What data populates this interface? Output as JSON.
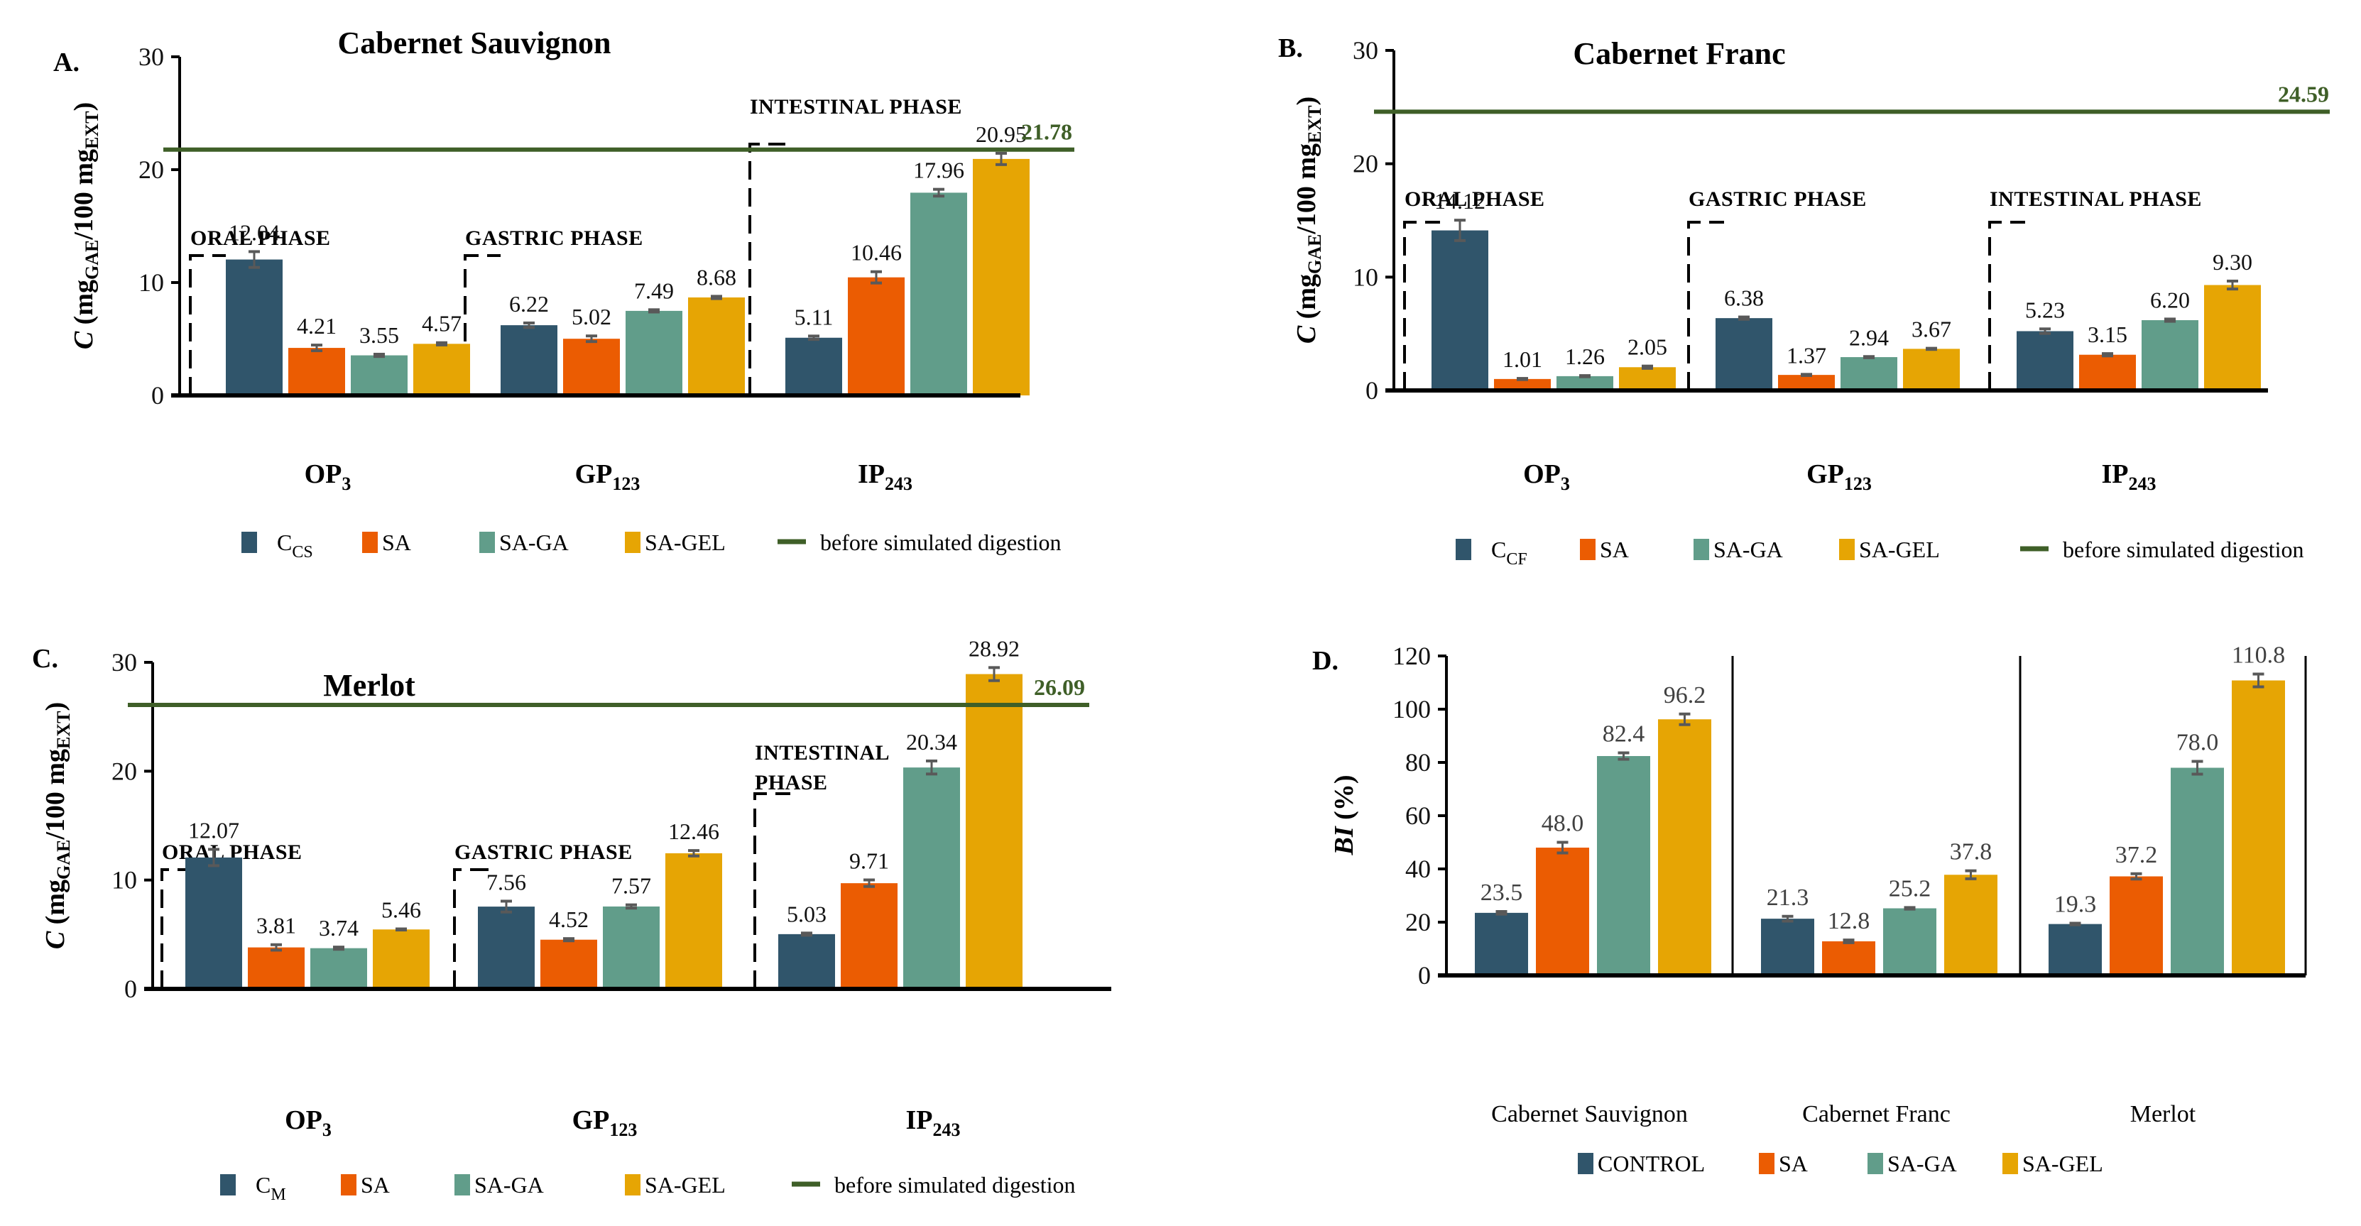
{
  "colors": {
    "control": "#30556B",
    "sa": "#EB5C02",
    "sa_ga": "#619D8A",
    "sa_gel": "#E6A504",
    "reference_line": "#3F5F28",
    "error_bar": "#595959",
    "axis": "#000000"
  },
  "chart_data": [
    {
      "id": "A",
      "type": "bar",
      "panel_letter": "A.",
      "title": "Cabernet Sauvignon",
      "ylabel": "C (mgGAE/100 mgEXT)",
      "ylabel_parts": {
        "pre": "C (mg",
        "sub1": "GAE",
        "mid": "/100 mg",
        "sub2": "EXT",
        "post": ")"
      },
      "ylim": [
        0,
        30
      ],
      "yticks": [
        0,
        10,
        20,
        30
      ],
      "categories": [
        {
          "main": "OP",
          "sub": "3",
          "phase": "ORAL PHASE"
        },
        {
          "main": "GP",
          "sub": "123",
          "phase": "GASTRIC PHASE"
        },
        {
          "main": "IP",
          "sub": "243",
          "phase": "INTESTINAL PHASE"
        }
      ],
      "series": [
        {
          "name": "CCS",
          "name_main": "C",
          "name_sub": "CS",
          "color_key": "control",
          "values": [
            12.04,
            6.22,
            5.11
          ],
          "errors": [
            0.7,
            0.2,
            0.15
          ]
        },
        {
          "name": "SA",
          "color_key": "sa",
          "values": [
            4.21,
            5.02,
            10.46
          ],
          "errors": [
            0.25,
            0.25,
            0.5
          ]
        },
        {
          "name": "SA-GA",
          "color_key": "sa_ga",
          "values": [
            3.55,
            7.49,
            17.96
          ],
          "errors": [
            0.1,
            0.1,
            0.3
          ]
        },
        {
          "name": "SA-GEL",
          "color_key": "sa_gel",
          "values": [
            4.57,
            8.68,
            20.95
          ],
          "errors": [
            0.1,
            0.1,
            0.5
          ]
        }
      ],
      "labels": [
        [
          "12.04",
          "6.22",
          "5.11"
        ],
        [
          "4.21",
          "5.02",
          "10.46"
        ],
        [
          "3.55",
          "7.49",
          "17.96"
        ],
        [
          "4.57",
          "8.68",
          "20.95"
        ]
      ],
      "reference": {
        "name": "before simulated digestion",
        "value": 21.78,
        "label": "21.78"
      },
      "legend_position": "bottom"
    },
    {
      "id": "B",
      "type": "bar",
      "panel_letter": "B.",
      "title": "Cabernet Franc",
      "ylabel": "C (mgGAE/100 mgEXT)",
      "ylabel_parts": {
        "pre": "C (mg",
        "sub1": "GAE",
        "mid": "/100 mg",
        "sub2": "EXT",
        "post": ")"
      },
      "ylim": [
        0,
        30
      ],
      "yticks": [
        0,
        10,
        20,
        30
      ],
      "categories": [
        {
          "main": "OP",
          "sub": "3",
          "phase": "ORAL PHASE"
        },
        {
          "main": "GP",
          "sub": "123",
          "phase": "GASTRIC PHASE"
        },
        {
          "main": "IP",
          "sub": "243",
          "phase": "INTESTINAL PHASE"
        }
      ],
      "series": [
        {
          "name": "CCF",
          "name_main": "C",
          "name_sub": "CF",
          "color_key": "control",
          "values": [
            14.12,
            6.38,
            5.23
          ],
          "errors": [
            0.9,
            0.1,
            0.2
          ]
        },
        {
          "name": "SA",
          "color_key": "sa",
          "values": [
            1.01,
            1.37,
            3.15
          ],
          "errors": [
            0.05,
            0.05,
            0.1
          ]
        },
        {
          "name": "SA-GA",
          "color_key": "sa_ga",
          "values": [
            1.26,
            2.94,
            6.2
          ],
          "errors": [
            0.05,
            0.05,
            0.1
          ]
        },
        {
          "name": "SA-GEL",
          "color_key": "sa_gel",
          "values": [
            2.05,
            3.67,
            9.3
          ],
          "errors": [
            0.1,
            0.05,
            0.35
          ]
        }
      ],
      "labels": [
        [
          "14.12",
          "6.38",
          "5.23"
        ],
        [
          "1.01",
          "1.37",
          "3.15"
        ],
        [
          "1.26",
          "2.94",
          "6.20"
        ],
        [
          "2.05",
          "3.67",
          "9.30"
        ]
      ],
      "reference": {
        "name": "before simulated digestion",
        "value": 24.59,
        "label": "24.59"
      },
      "legend_position": "bottom"
    },
    {
      "id": "C",
      "type": "bar",
      "panel_letter": "C.",
      "title": "Merlot",
      "ylabel": "C (mgGAE/100 mgEXT)",
      "ylabel_parts": {
        "pre": "C (mg",
        "sub1": "GAE",
        "mid": "/100 mg",
        "sub2": "EXT",
        "post": ")"
      },
      "ylim": [
        0,
        30
      ],
      "yticks": [
        0,
        10,
        20,
        30
      ],
      "categories": [
        {
          "main": "OP",
          "sub": "3",
          "phase": "ORAL PHASE"
        },
        {
          "main": "GP",
          "sub": "123",
          "phase": "GASTRIC PHASE"
        },
        {
          "main": "IP",
          "sub": "243",
          "phase": "INTESTINAL PHASE",
          "phase_lines": [
            "INTESTINAL",
            "PHASE"
          ]
        }
      ],
      "series": [
        {
          "name": "CM",
          "name_main": "C",
          "name_sub": "M",
          "color_key": "control",
          "values": [
            12.07,
            7.56,
            5.03
          ],
          "errors": [
            0.75,
            0.5,
            0.1
          ]
        },
        {
          "name": "SA",
          "color_key": "sa",
          "values": [
            3.81,
            4.52,
            9.71
          ],
          "errors": [
            0.25,
            0.1,
            0.3
          ]
        },
        {
          "name": "SA-GA",
          "color_key": "sa_ga",
          "values": [
            3.74,
            7.57,
            20.34
          ],
          "errors": [
            0.1,
            0.15,
            0.6
          ]
        },
        {
          "name": "SA-GEL",
          "color_key": "sa_gel",
          "values": [
            5.46,
            12.46,
            28.92
          ],
          "errors": [
            0.05,
            0.25,
            0.6
          ]
        }
      ],
      "labels": [
        [
          "12.07",
          "7.56",
          "5.03"
        ],
        [
          "3.81",
          "4.52",
          "9.71"
        ],
        [
          "3.74",
          "7.57",
          "20.34"
        ],
        [
          "5.46",
          "12.46",
          "28.92"
        ]
      ],
      "reference": {
        "name": "before simulated digestion",
        "value": 26.09,
        "label": "26.09"
      },
      "legend_position": "bottom"
    },
    {
      "id": "D",
      "type": "bar",
      "panel_letter": "D.",
      "title": "",
      "ylabel": "BI (%)",
      "ylabel_parts": {
        "italic": "BI",
        "post": " (%)"
      },
      "ylim": [
        0,
        120
      ],
      "yticks": [
        0,
        20,
        40,
        60,
        80,
        100,
        120
      ],
      "categories": [
        {
          "main": "Cabernet Sauvignon"
        },
        {
          "main": "Cabernet Franc"
        },
        {
          "main": "Merlot"
        }
      ],
      "series": [
        {
          "name": "CONTROL",
          "color_key": "control",
          "values": [
            23.5,
            21.3,
            19.3
          ],
          "errors": [
            0.5,
            0.9,
            0.3
          ]
        },
        {
          "name": "SA",
          "color_key": "sa",
          "values": [
            48.0,
            12.8,
            37.2
          ],
          "errors": [
            2.0,
            0.5,
            1.0
          ]
        },
        {
          "name": "SA-GA",
          "color_key": "sa_ga",
          "values": [
            82.4,
            25.2,
            78.0
          ],
          "errors": [
            1.2,
            0.3,
            2.4
          ]
        },
        {
          "name": "SA-GEL",
          "color_key": "sa_gel",
          "values": [
            96.2,
            37.8,
            110.8
          ],
          "errors": [
            2.0,
            1.5,
            2.4
          ]
        }
      ],
      "labels": [
        [
          "23.5",
          "21.3",
          "19.3"
        ],
        [
          "48.0",
          "12.8",
          "37.2"
        ],
        [
          "82.4",
          "25.2",
          "78.0"
        ],
        [
          "96.2",
          "37.8",
          "110.8"
        ]
      ],
      "legend_position": "bottom"
    }
  ]
}
